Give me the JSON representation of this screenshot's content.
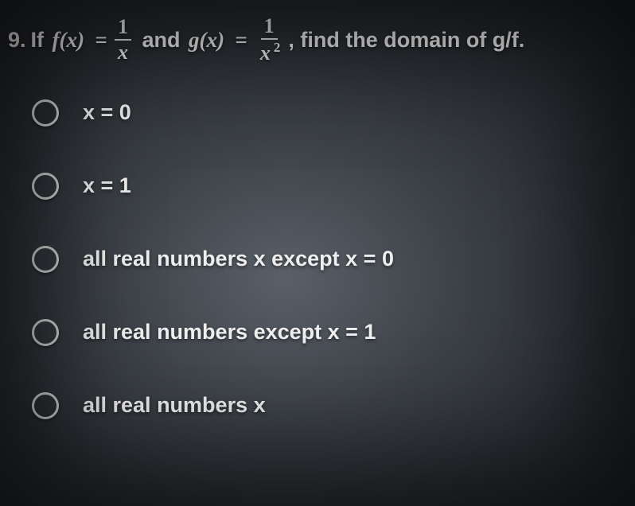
{
  "question": {
    "number": "9.",
    "prefix": "If",
    "f_lhs": "f(x)",
    "eq": "=",
    "frac1_num": "1",
    "frac1_den": "x",
    "and": "and",
    "g_lhs": "g(x)",
    "frac2_num": "1",
    "frac2_den_base": "x",
    "frac2_den_exp": "2",
    "suffix": ", find the domain of g/f."
  },
  "options": [
    {
      "label": "x = 0"
    },
    {
      "label": "x = 1"
    },
    {
      "label": "all real numbers x except x = 0"
    },
    {
      "label": "all real numbers except x = 1"
    },
    {
      "label": "all real numbers x"
    }
  ],
  "style": {
    "text_color": "#e8e8e8",
    "radio_border": "#d8d8d8",
    "background_center": "#5a6068",
    "background_edge": "#1a1d21",
    "font_size_question": 27,
    "font_size_option": 27,
    "radio_size": 34
  }
}
